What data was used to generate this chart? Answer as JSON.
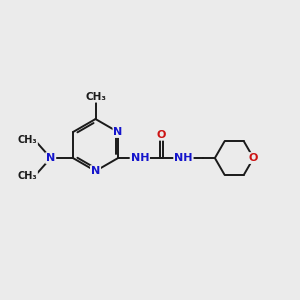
{
  "background_color": "#ebebeb",
  "bond_color": "#1a1a1a",
  "n_color": "#1414cc",
  "o_color": "#cc1414",
  "font_size": 8,
  "figsize": [
    3.0,
    3.0
  ],
  "dpi": 100,
  "xlim": [
    0,
    12
  ],
  "ylim": [
    0,
    10
  ]
}
